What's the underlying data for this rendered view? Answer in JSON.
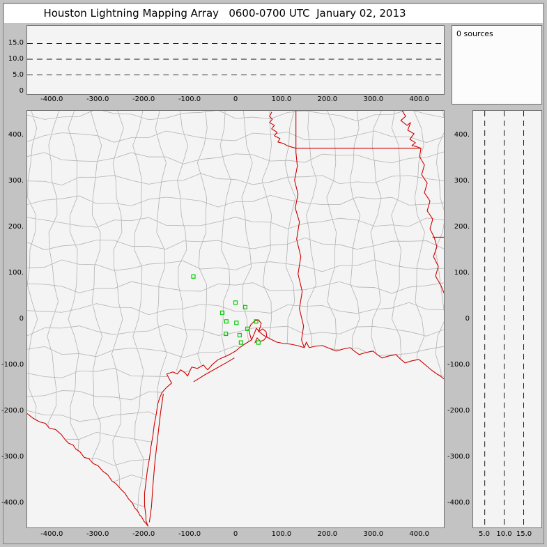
{
  "title": "Houston Lightning Mapping Array   0600-0700 UTC  January 02, 2013",
  "histogram_panel": {
    "label": "0 sources"
  },
  "ew_panel": {
    "y_tick_labels": [
      "15.0",
      "10.0",
      "5.0",
      "0"
    ],
    "x_tick_labels": [
      "-400.0",
      "-300.0",
      "-200.0",
      "-100.0",
      "0",
      "100.0",
      "200.0",
      "300.0",
      "400.0"
    ]
  },
  "plan_panel": {
    "y_tick_labels": [
      "400.",
      "300.",
      "200.",
      "100.",
      "0",
      "-100.0",
      "-200.0",
      "-300.0",
      "-400.0"
    ],
    "x_tick_labels": [
      "-400.0",
      "-300.0",
      "-200.0",
      "-100.0",
      "0",
      "100.0",
      "200.0",
      "300.0",
      "400.0"
    ]
  },
  "ns_panel": {
    "y_tick_labels": [
      "400.",
      "300.",
      "200.",
      "100.",
      "0",
      "-100.0",
      "-200.0",
      "-300.0",
      "-400.0"
    ],
    "x_tick_labels": [
      "5.0",
      "10.0",
      "15.0"
    ]
  },
  "colors": {
    "background": "#c3c3c3",
    "panel": "#f4f4f4",
    "panel_border": "#6f6f6f",
    "county": "#b2b2b2",
    "state_border": "#cc0000",
    "station": "#00cc00",
    "dashed": "#111111"
  },
  "chart_data": [
    {
      "type": "scatter",
      "panel": "altitude-vs-east-west",
      "xlim": [
        -460,
        460
      ],
      "ylim": [
        0,
        20
      ],
      "x_ticks": [
        -400,
        -300,
        -200,
        -100,
        0,
        100,
        200,
        300,
        400
      ],
      "y_ticks": [
        0,
        5,
        10,
        15
      ],
      "reference_lines_y_km": [
        5,
        10,
        15
      ],
      "points": []
    },
    {
      "type": "scatter",
      "panel": "plan-view-map",
      "xlim": [
        -460,
        460
      ],
      "ylim": [
        -460,
        460
      ],
      "x_ticks": [
        -400,
        -300,
        -200,
        -100,
        0,
        100,
        200,
        300,
        400
      ],
      "y_ticks": [
        -400,
        -300,
        -200,
        -100,
        0,
        100,
        200,
        300,
        400
      ],
      "points": [],
      "stations_km": [
        [
          -92,
          93
        ],
        [
          0,
          36
        ],
        [
          21,
          26
        ],
        [
          -29,
          14
        ],
        [
          -20,
          -5
        ],
        [
          2,
          -8
        ],
        [
          -21,
          -32
        ],
        [
          9,
          -35
        ],
        [
          26,
          -21
        ],
        [
          45,
          -5
        ],
        [
          12,
          -51
        ],
        [
          50,
          -51
        ]
      ],
      "map_layers": [
        "county-boundaries",
        "state-borders",
        "gulf-coastline"
      ]
    },
    {
      "type": "scatter",
      "panel": "altitude-vs-north-south",
      "xlim": [
        0,
        20
      ],
      "ylim": [
        -460,
        460
      ],
      "x_ticks": [
        5,
        10,
        15
      ],
      "reference_lines_x_km": [
        5,
        10,
        15
      ],
      "points": []
    },
    {
      "type": "histogram",
      "panel": "source-count",
      "label": "0 sources",
      "points": []
    }
  ]
}
